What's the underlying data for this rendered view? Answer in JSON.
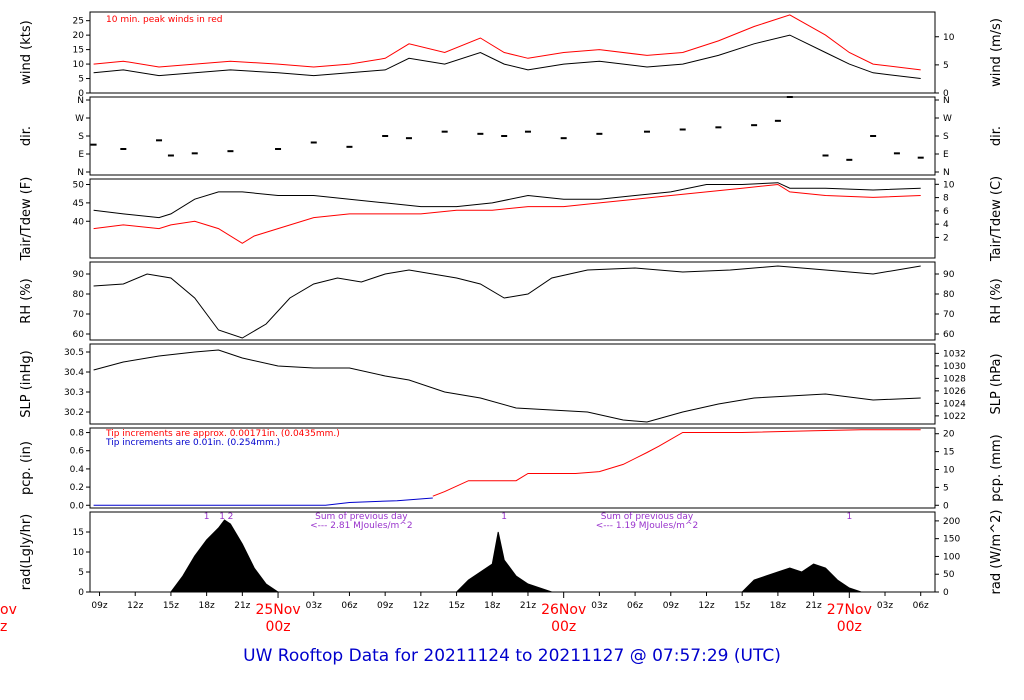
{
  "page_title": "UW Rooftop Data for 20211124  to  20211127 @ 07:57:29  (UTC)",
  "colors": {
    "frame": "#000000",
    "red": "#ff0000",
    "blue": "#0000cc",
    "purple": "#9933cc",
    "title": "#0000cc"
  },
  "chart_data": [
    {
      "type": "line",
      "id": "wind",
      "ylabel_left": "wind (kts)",
      "ylabel_right": "wind (m/s)",
      "ylim": [
        0,
        28
      ],
      "yticks_left": [
        0,
        5,
        10,
        15,
        20,
        25
      ],
      "yticks_right": [
        0,
        5,
        10
      ],
      "annotation": "10 min. peak winds in red",
      "series": [
        {
          "color": "#000000",
          "x": [
            8.5,
            11,
            14,
            17,
            20,
            24,
            27,
            30,
            33,
            35,
            38,
            41,
            43,
            45,
            48,
            51,
            55,
            58,
            61,
            64,
            67,
            70,
            72,
            74,
            78
          ],
          "y": [
            7,
            8,
            6,
            7,
            8,
            7,
            6,
            7,
            8,
            12,
            10,
            14,
            10,
            8,
            10,
            11,
            9,
            10,
            13,
            17,
            20,
            14,
            10,
            7,
            5
          ]
        },
        {
          "color": "#ff0000",
          "x": [
            8.5,
            11,
            14,
            17,
            20,
            24,
            27,
            30,
            33,
            35,
            38,
            41,
            43,
            45,
            48,
            51,
            55,
            58,
            61,
            64,
            67,
            70,
            72,
            74,
            78
          ],
          "y": [
            10,
            11,
            9,
            10,
            11,
            10,
            9,
            10,
            12,
            17,
            14,
            19,
            14,
            12,
            14,
            15,
            13,
            14,
            18,
            23,
            27,
            20,
            14,
            10,
            8
          ]
        }
      ]
    },
    {
      "type": "scatter",
      "id": "dir",
      "ylabel_left": "dir.",
      "ylabel_right": "dir.",
      "ylim": [
        0,
        360
      ],
      "yticks_left": [
        "N",
        "E",
        "S",
        "W",
        "N"
      ],
      "yticks_right": [
        "N",
        "E",
        "S",
        "W",
        "N"
      ],
      "series": [
        {
          "color": "#000000",
          "x": [
            8.5,
            11,
            14,
            15,
            17,
            20,
            24,
            27,
            30,
            33,
            35,
            38,
            41,
            43,
            45,
            48,
            51,
            55,
            58,
            61,
            64,
            66,
            67,
            70,
            72,
            74,
            76,
            78
          ],
          "y": [
            140,
            120,
            160,
            90,
            100,
            110,
            120,
            150,
            130,
            180,
            170,
            200,
            190,
            180,
            200,
            170,
            190,
            200,
            210,
            220,
            230,
            250,
            360,
            90,
            70,
            180,
            100,
            80
          ]
        }
      ]
    },
    {
      "type": "line",
      "id": "temp",
      "ylabel_left": "Tair/Tdew (F)",
      "ylabel_right": "Tair/Tdew (C)",
      "ylim": [
        30,
        51.5
      ],
      "yticks_left": [
        40,
        45,
        50
      ],
      "yticks_right": [
        2,
        4,
        6,
        8,
        10
      ],
      "series": [
        {
          "color": "#000000",
          "x": [
            8.5,
            11,
            14,
            15,
            17,
            19,
            21,
            24,
            27,
            30,
            33,
            36,
            39,
            42,
            45,
            48,
            51,
            54,
            57,
            60,
            63,
            66,
            67,
            70,
            74,
            78
          ],
          "y": [
            43,
            42,
            41,
            42,
            46,
            48,
            48,
            47,
            47,
            46,
            45,
            44,
            44,
            45,
            47,
            46,
            46,
            47,
            48,
            50,
            50,
            50.5,
            49,
            49,
            48.5,
            49
          ]
        },
        {
          "color": "#ff0000",
          "x": [
            8.5,
            11,
            14,
            15,
            17,
            19,
            21,
            22,
            24,
            27,
            30,
            33,
            36,
            39,
            42,
            45,
            48,
            51,
            54,
            57,
            60,
            63,
            66,
            67,
            70,
            74,
            78
          ],
          "y": [
            38,
            39,
            38,
            39,
            40,
            38,
            34,
            36,
            38,
            41,
            42,
            42,
            42,
            43,
            43,
            44,
            44,
            45,
            46,
            47,
            48,
            49,
            50,
            48,
            47,
            46.5,
            47
          ]
        }
      ]
    },
    {
      "type": "line",
      "id": "rh",
      "ylabel_left": "RH (%)",
      "ylabel_right": "RH (%)",
      "ylim": [
        57,
        96
      ],
      "yticks_left": [
        60,
        70,
        80,
        90
      ],
      "yticks_right": [
        60,
        70,
        80,
        90
      ],
      "series": [
        {
          "color": "#000000",
          "x": [
            8.5,
            11,
            13,
            15,
            17,
            19,
            21,
            23,
            25,
            27,
            29,
            31,
            33,
            35,
            37,
            39,
            41,
            43,
            45,
            47,
            50,
            54,
            58,
            62,
            66,
            70,
            74,
            78
          ],
          "y": [
            84,
            85,
            90,
            88,
            78,
            62,
            58,
            65,
            78,
            85,
            88,
            86,
            90,
            92,
            90,
            88,
            85,
            78,
            80,
            88,
            92,
            93,
            91,
            92,
            94,
            92,
            90,
            94
          ]
        }
      ]
    },
    {
      "type": "line",
      "id": "slp",
      "ylabel_left": "SLP (inHg)",
      "ylabel_right": "SLP (hPa)",
      "ylim": [
        30.14,
        30.54
      ],
      "yticks_left": [
        "30.2",
        "30.3",
        "30.4",
        "30.5"
      ],
      "yticks_right": [
        1022,
        1024,
        1026,
        1028,
        1030,
        1032
      ],
      "series": [
        {
          "color": "#000000",
          "x": [
            8.5,
            11,
            14,
            17,
            19,
            21,
            24,
            27,
            30,
            33,
            35,
            38,
            41,
            44,
            47,
            50,
            53,
            55,
            58,
            61,
            64,
            67,
            70,
            74,
            78
          ],
          "y": [
            30.41,
            30.45,
            30.48,
            30.5,
            30.51,
            30.47,
            30.43,
            30.42,
            30.42,
            30.38,
            30.36,
            30.3,
            30.27,
            30.22,
            30.21,
            30.2,
            30.16,
            30.15,
            30.2,
            30.24,
            30.27,
            30.28,
            30.29,
            30.26,
            30.27
          ]
        }
      ]
    },
    {
      "type": "line",
      "id": "pcp",
      "ylabel_left": "pcp. (in)",
      "ylabel_right": "pcp. (mm)",
      "ylim": [
        -0.03,
        0.85
      ],
      "yticks_left": [
        "0.0",
        "0.2",
        "0.4",
        "0.6",
        "0.8"
      ],
      "yticks_right": [
        0,
        5,
        10,
        15,
        20
      ],
      "annotation_red": "Tip increments are approx. 0.00171in. (0.0435mm.)",
      "annotation_blue": "Tip increments are 0.01in. (0.254mm.)",
      "series": [
        {
          "color": "#0000cc",
          "x": [
            8.5,
            28,
            30,
            34,
            37
          ],
          "y": [
            0,
            0,
            0.03,
            0.05,
            0.08
          ]
        },
        {
          "color": "#ff0000",
          "x": [
            37,
            38,
            40,
            44,
            45,
            49,
            51,
            53,
            55,
            56,
            58,
            63,
            69,
            73,
            78
          ],
          "y": [
            0.1,
            0.15,
            0.27,
            0.27,
            0.35,
            0.35,
            0.37,
            0.45,
            0.58,
            0.65,
            0.8,
            0.8,
            0.82,
            0.83,
            0.83
          ]
        }
      ]
    },
    {
      "type": "area",
      "id": "rad",
      "ylabel_left": "rad(Lgly/hr)",
      "ylabel_right": "rad (W/m^2)",
      "ylim": [
        0,
        20
      ],
      "yticks_left": [
        0,
        5,
        10,
        15
      ],
      "yticks_right": [
        0,
        50,
        100,
        150,
        200
      ],
      "annotations": [
        {
          "text": "Sum of previous day",
          "x": 31
        },
        {
          "text": "<--- 2.81 MJoules/m^2",
          "x": 31
        },
        {
          "text": "Sum of previous day",
          "x": 55
        },
        {
          "text": "<--- 1.19 MJoules/m^2",
          "x": 55
        },
        {
          "text": "1",
          "x": 18
        },
        {
          "text": "1",
          "x": 19.3
        },
        {
          "text": "2",
          "x": 20
        },
        {
          "text": "1",
          "x": 43
        },
        {
          "text": "1",
          "x": 72
        }
      ],
      "series": [
        {
          "color": "#000000",
          "x": [
            15,
            16,
            17,
            18,
            19,
            19.5,
            20,
            21,
            22,
            23,
            24,
            39,
            40,
            41,
            42,
            42.5,
            43,
            44,
            45,
            46,
            47,
            63,
            64,
            65,
            66,
            67,
            68,
            69,
            70,
            71,
            72,
            73
          ],
          "y": [
            0,
            4,
            9,
            13,
            16,
            18,
            17,
            12,
            6,
            2,
            0,
            0,
            3,
            5,
            7,
            15,
            8,
            4,
            2,
            1,
            0,
            0,
            3,
            4,
            5,
            6,
            5,
            7,
            6,
            3,
            1,
            0
          ]
        }
      ]
    }
  ],
  "x_axis": {
    "tick_labels": [
      "09z",
      "12z",
      "15z",
      "18z",
      "21z",
      "03z",
      "06z",
      "09z",
      "12z",
      "15z",
      "18z",
      "21z",
      "03z",
      "06z",
      "09z",
      "12z",
      "15z",
      "18z",
      "21z",
      "03z",
      "06z"
    ],
    "tick_hours": [
      9,
      12,
      15,
      18,
      21,
      27,
      30,
      33,
      36,
      39,
      42,
      45,
      51,
      54,
      57,
      60,
      63,
      66,
      69,
      75,
      78
    ],
    "day_labels": [
      {
        "date": "25Nov",
        "time": "00z",
        "hour": 24
      },
      {
        "date": "26Nov",
        "time": "00z",
        "hour": 48
      },
      {
        "date": "27Nov",
        "time": "00z",
        "hour": 72
      }
    ],
    "edge_date": "ov",
    "edge_time": "z"
  }
}
